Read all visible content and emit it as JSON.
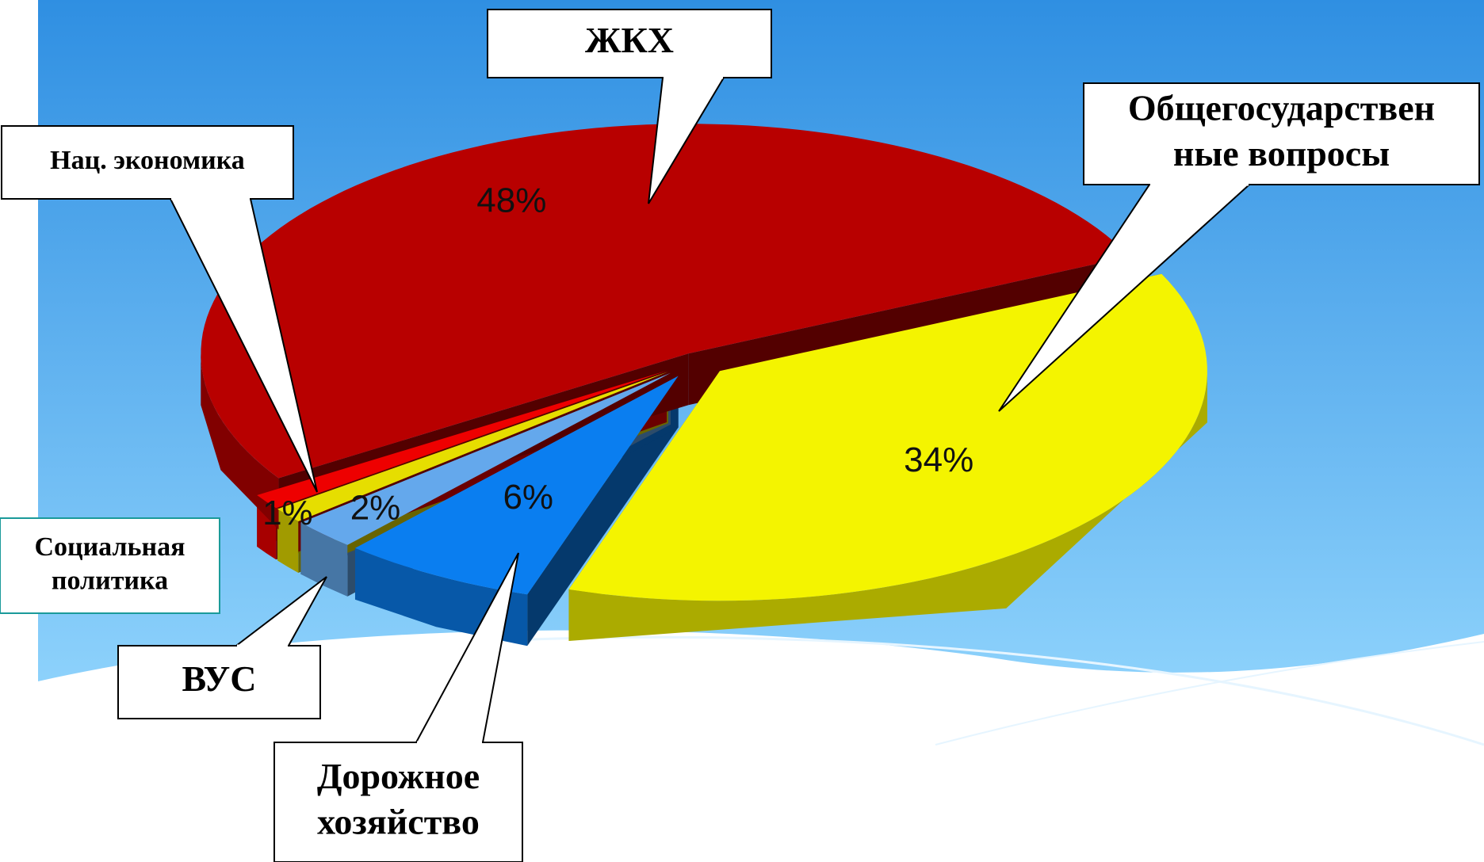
{
  "chart_data": {
    "type": "pie3d",
    "categories": [
      "Общегосударствен\nные вопросы",
      "Дорожное\nхозяйство",
      "ВУС",
      "Социальная\nполитика",
      "Нац. экономика",
      "ЖКХ"
    ],
    "values": [
      34,
      6,
      2,
      1,
      1,
      48
    ],
    "value_labels": [
      "34%",
      "6%",
      "2%",
      "1%",
      null,
      "48%"
    ],
    "colors": [
      "#f4f400",
      "#0a7ef0",
      "#64a8ec",
      "#e6de00",
      "#ee0000",
      "#b80000"
    ]
  }
}
